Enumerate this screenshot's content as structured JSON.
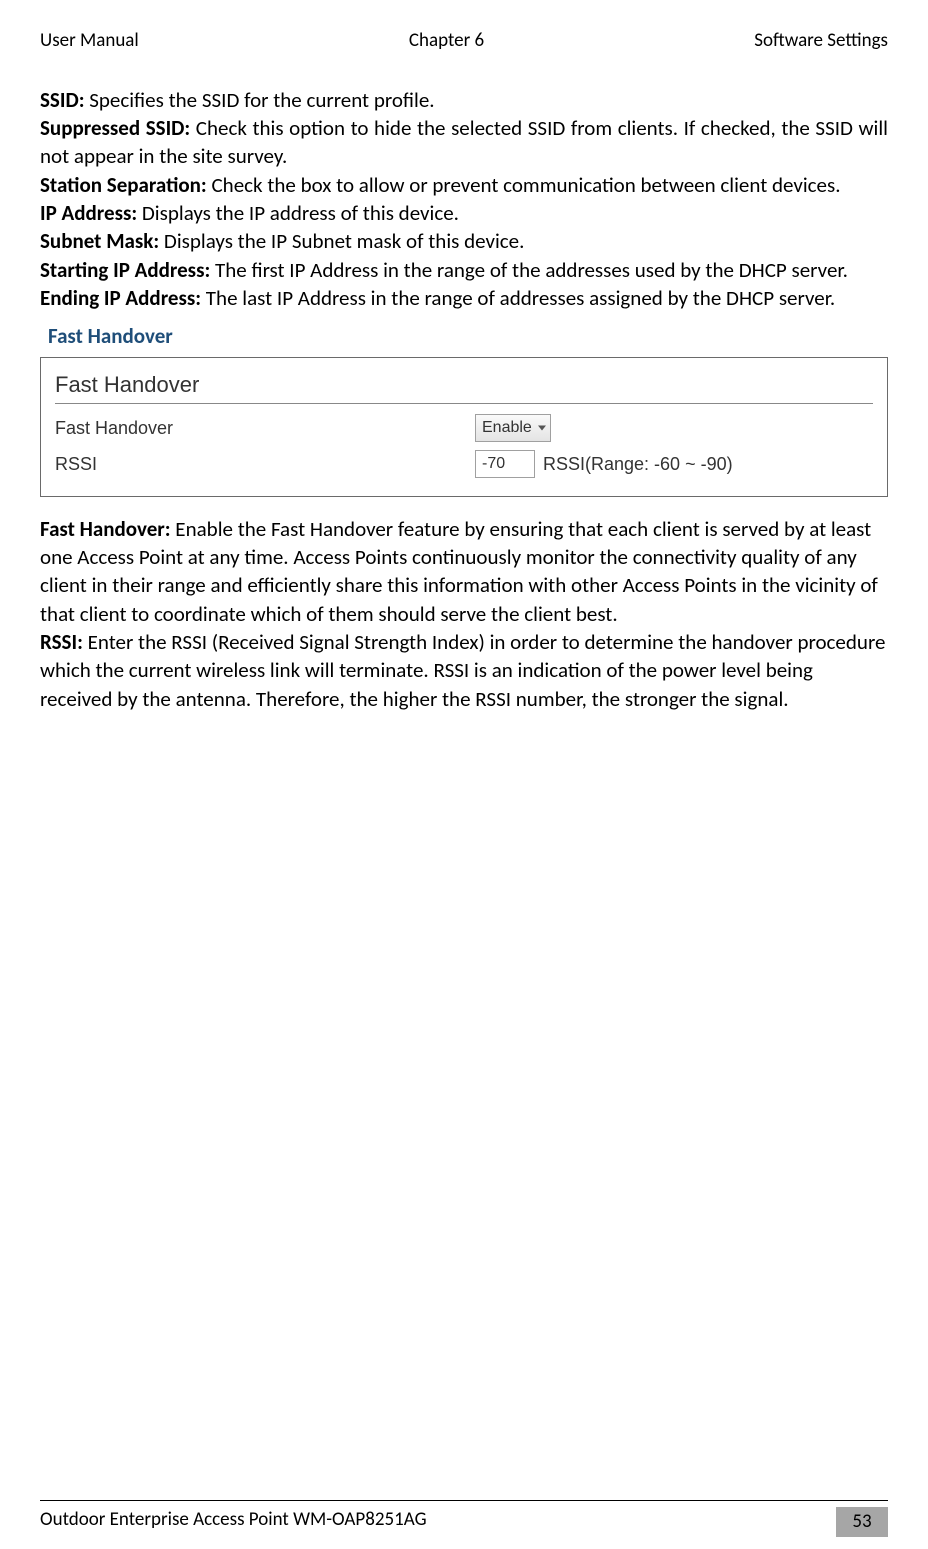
{
  "header": {
    "left": "User Manual",
    "center": "Chapter 6",
    "right": "Software Settings"
  },
  "defs": {
    "ssid_label": "SSID:",
    "ssid_text": " Specifies the SSID for the current profile.",
    "supp_label": "Suppressed SSID:",
    "supp_text": " Check this option to hide the selected SSID from clients. If checked, the SSID will not appear in the site survey.",
    "sep_label": "Station Separation:",
    "sep_text": " Check the box to allow or prevent communication between client devices.",
    "ip_label": "IP Address:",
    "ip_text": " Displays the IP address of this device.",
    "mask_label": "Subnet Mask:",
    "mask_text": " Displays the IP Subnet mask of this device.",
    "start_label": "Starting IP Address:",
    "start_text": " The first IP Address in the range of the addresses used by the DHCP server.",
    "end_label": "Ending IP Address:",
    "end_text": " The last IP Address in the range of addresses assigned by the DHCP server."
  },
  "section_title": "Fast Handover",
  "panel": {
    "title": "Fast Handover",
    "row1_label": "Fast Handover",
    "row1_value": "Enable",
    "row2_label": "RSSI",
    "row2_value": "-70",
    "row2_hint": "RSSI(Range: -60 ~ -90)"
  },
  "body": {
    "fh_label": "Fast Handover:",
    "fh_text": " Enable the Fast Handover feature by ensuring that each client is served by at least one Access Point at any time. Access Points continuously monitor the connectivity quality of any client in their range and efficiently share this information with other Access Points in the vicinity of that client to coordinate which of them should serve the client best.",
    "rssi_label": "RSSI:",
    "rssi_text": " Enter the RSSI (Received Signal Strength Index) in order to determine the handover procedure which the current wireless link will terminate. RSSI is an indication of the power level being received by the antenna. Therefore, the higher the RSSI number, the stronger the signal."
  },
  "footer": {
    "title": "Outdoor Enterprise Access Point WM-OAP8251AG",
    "page": "53"
  }
}
